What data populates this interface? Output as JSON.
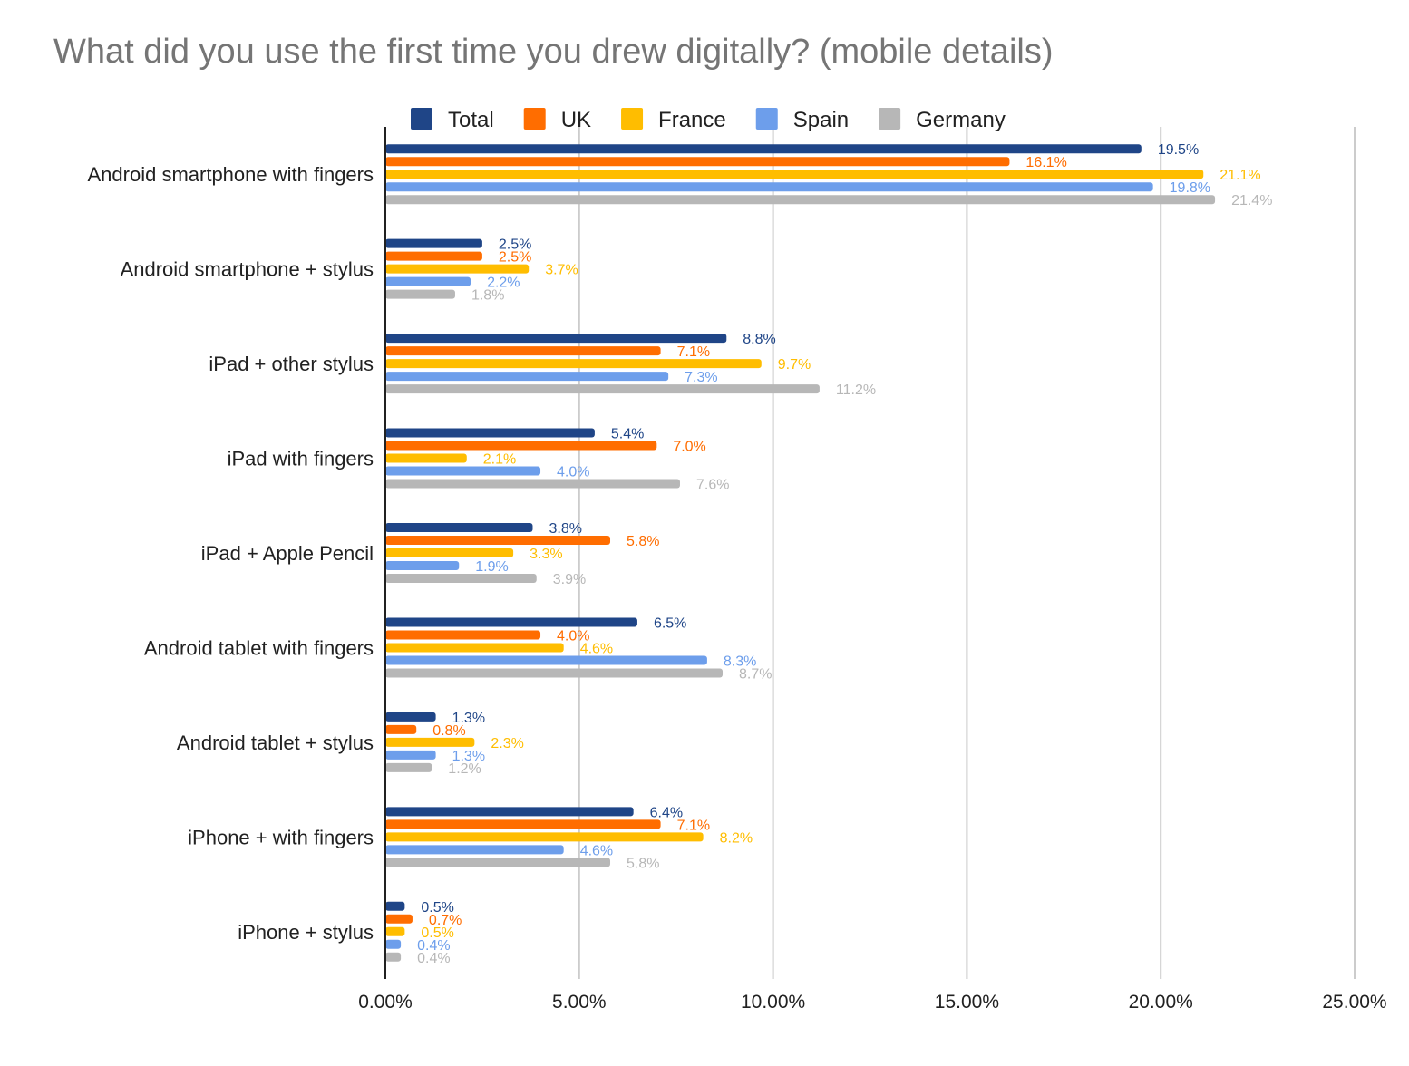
{
  "chart_data": {
    "type": "bar",
    "orientation": "horizontal",
    "title": "What did you use the first time you drew digitally? (mobile details)",
    "xlabel": "",
    "ylabel": "",
    "xlim": [
      0,
      25
    ],
    "x_ticks": [
      "0.00%",
      "5.00%",
      "10.00%",
      "15.00%",
      "20.00%",
      "25.00%"
    ],
    "grid": true,
    "legend_position": "top",
    "categories": [
      "Android smartphone with fingers",
      "Android smartphone + stylus",
      "iPad + other stylus",
      "iPad with fingers",
      "iPad + Apple Pencil",
      "Android tablet with fingers",
      "Android tablet + stylus",
      "iPhone + with fingers",
      "iPhone + stylus"
    ],
    "series": [
      {
        "name": "Total",
        "color": "#1f4587",
        "values": [
          19.5,
          2.5,
          8.8,
          5.4,
          3.8,
          6.5,
          1.3,
          6.4,
          0.5
        ],
        "labels": [
          "19.5%",
          "2.5%",
          "8.8%",
          "5.4%",
          "3.8%",
          "6.5%",
          "1.3%",
          "6.4%",
          "0.5%"
        ]
      },
      {
        "name": "UK",
        "color": "#ff6d00",
        "values": [
          16.1,
          2.5,
          7.1,
          7.0,
          5.8,
          4.0,
          0.8,
          7.1,
          0.7
        ],
        "labels": [
          "16.1%",
          "2.5%",
          "7.1%",
          "7.0%",
          "5.8%",
          "4.0%",
          "0.8%",
          "7.1%",
          "0.7%"
        ]
      },
      {
        "name": "France",
        "color": "#ffbd00",
        "values": [
          21.1,
          3.7,
          9.7,
          2.1,
          3.3,
          4.6,
          2.3,
          8.2,
          0.5
        ],
        "labels": [
          "21.1%",
          "3.7%",
          "9.7%",
          "2.1%",
          "3.3%",
          "4.6%",
          "2.3%",
          "8.2%",
          "0.5%"
        ]
      },
      {
        "name": "Spain",
        "color": "#6d9eeb",
        "values": [
          19.8,
          2.2,
          7.3,
          4.0,
          1.9,
          8.3,
          1.3,
          4.6,
          0.4
        ],
        "labels": [
          "19.8%",
          "2.2%",
          "7.3%",
          "4.0%",
          "1.9%",
          "8.3%",
          "1.3%",
          "4.6%",
          "0.4%"
        ]
      },
      {
        "name": "Germany",
        "color": "#b7b7b7",
        "values": [
          21.4,
          1.8,
          11.2,
          7.6,
          3.9,
          8.7,
          1.2,
          5.8,
          0.4
        ],
        "labels": [
          "21.4%",
          "1.8%",
          "11.2%",
          "7.6%",
          "3.9%",
          "8.7%",
          "1.2%",
          "5.8%",
          "0.4%"
        ]
      }
    ]
  }
}
